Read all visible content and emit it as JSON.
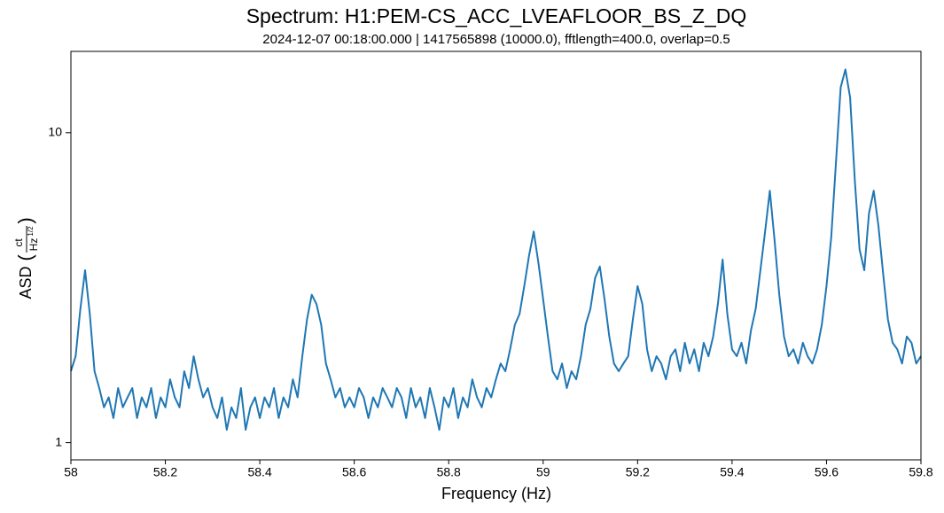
{
  "chart_data": {
    "type": "line",
    "title": "Spectrum: H1:PEM-CS_ACC_LVEAFLOOR_BS_Z_DQ",
    "subtitle": "2024-12-07 00:18:00.000 | 1417565898 (10000.0), fftlength=400.0, overlap=0.5",
    "xlabel": "Frequency (Hz)",
    "ylabel": {
      "text": "ASD",
      "numerator": "ct",
      "denominator": "Hz",
      "exponent": "1/2"
    },
    "log_y": true,
    "grid": false,
    "xlim": [
      58,
      59.8
    ],
    "xticks": [
      58,
      58.2,
      58.4,
      58.6,
      58.8,
      59,
      59.2,
      59.4,
      59.6,
      59.8
    ],
    "ylim": [
      0.88,
      18.3
    ],
    "yticks": [
      1,
      10
    ],
    "x": [
      58,
      58.01,
      58.02,
      58.03,
      58.04,
      58.05,
      58.06,
      58.07,
      58.08,
      58.09,
      58.1,
      58.11,
      58.12,
      58.13,
      58.14,
      58.15,
      58.16,
      58.17,
      58.18,
      58.19,
      58.2,
      58.21,
      58.22,
      58.23,
      58.24,
      58.25,
      58.26,
      58.27,
      58.28,
      58.29,
      58.3,
      58.31,
      58.32,
      58.33,
      58.34,
      58.35,
      58.36,
      58.37,
      58.38,
      58.39,
      58.4,
      58.41,
      58.42,
      58.43,
      58.44,
      58.45,
      58.46,
      58.47,
      58.48,
      58.49,
      58.5,
      58.51,
      58.52,
      58.53,
      58.54,
      58.55,
      58.56,
      58.57,
      58.58,
      58.59,
      58.6,
      58.61,
      58.62,
      58.63,
      58.64,
      58.65,
      58.66,
      58.67,
      58.68,
      58.69,
      58.7,
      58.71,
      58.72,
      58.73,
      58.74,
      58.75,
      58.76,
      58.77,
      58.78,
      58.79,
      58.8,
      58.81,
      58.82,
      58.83,
      58.84,
      58.85,
      58.86,
      58.87,
      58.88,
      58.89,
      58.9,
      58.91,
      58.92,
      58.93,
      58.94,
      58.95,
      58.96,
      58.97,
      58.98,
      58.99,
      59,
      59.01,
      59.02,
      59.03,
      59.04,
      59.05,
      59.06,
      59.07,
      59.08,
      59.09,
      59.1,
      59.11,
      59.12,
      59.13,
      59.14,
      59.15,
      59.16,
      59.17,
      59.18,
      59.19,
      59.2,
      59.21,
      59.22,
      59.23,
      59.24,
      59.25,
      59.26,
      59.27,
      59.28,
      59.29,
      59.3,
      59.31,
      59.32,
      59.33,
      59.34,
      59.35,
      59.36,
      59.37,
      59.38,
      59.39,
      59.4,
      59.41,
      59.42,
      59.43,
      59.44,
      59.45,
      59.46,
      59.47,
      59.48,
      59.49,
      59.5,
      59.51,
      59.52,
      59.53,
      59.54,
      59.55,
      59.56,
      59.57,
      59.58,
      59.59,
      59.6,
      59.61,
      59.62,
      59.63,
      59.64,
      59.65,
      59.66,
      59.67,
      59.68,
      59.69,
      59.7,
      59.71,
      59.72,
      59.73,
      59.74,
      59.75,
      59.76,
      59.77,
      59.78,
      59.79,
      59.8
    ],
    "series": [
      {
        "color": "#1f77b4",
        "values": [
          1.7,
          1.9,
          2.7,
          3.6,
          2.6,
          1.7,
          1.5,
          1.3,
          1.4,
          1.2,
          1.5,
          1.3,
          1.4,
          1.5,
          1.2,
          1.4,
          1.3,
          1.5,
          1.2,
          1.4,
          1.3,
          1.6,
          1.4,
          1.3,
          1.7,
          1.5,
          1.9,
          1.6,
          1.4,
          1.5,
          1.3,
          1.2,
          1.4,
          1.1,
          1.3,
          1.2,
          1.5,
          1.1,
          1.3,
          1.4,
          1.2,
          1.4,
          1.3,
          1.5,
          1.2,
          1.4,
          1.3,
          1.6,
          1.4,
          1.9,
          2.5,
          3.0,
          2.8,
          2.4,
          1.8,
          1.6,
          1.4,
          1.5,
          1.3,
          1.4,
          1.3,
          1.5,
          1.4,
          1.2,
          1.4,
          1.3,
          1.5,
          1.4,
          1.3,
          1.5,
          1.4,
          1.2,
          1.5,
          1.3,
          1.4,
          1.2,
          1.5,
          1.3,
          1.1,
          1.4,
          1.3,
          1.5,
          1.2,
          1.4,
          1.3,
          1.6,
          1.4,
          1.3,
          1.5,
          1.4,
          1.6,
          1.8,
          1.7,
          2.0,
          2.4,
          2.6,
          3.2,
          4.0,
          4.8,
          3.8,
          2.9,
          2.2,
          1.7,
          1.6,
          1.8,
          1.5,
          1.7,
          1.6,
          1.9,
          2.4,
          2.7,
          3.4,
          3.7,
          2.9,
          2.2,
          1.8,
          1.7,
          1.8,
          1.9,
          2.5,
          3.2,
          2.8,
          2.0,
          1.7,
          1.9,
          1.8,
          1.6,
          1.9,
          2.0,
          1.7,
          2.1,
          1.8,
          2.0,
          1.7,
          2.1,
          1.9,
          2.2,
          2.8,
          3.9,
          2.6,
          2.0,
          1.9,
          2.1,
          1.8,
          2.3,
          2.7,
          3.6,
          4.8,
          6.5,
          4.5,
          3.0,
          2.2,
          1.9,
          2.0,
          1.8,
          2.1,
          1.9,
          1.8,
          2.0,
          2.4,
          3.2,
          4.6,
          8.0,
          14.0,
          16.0,
          13.0,
          7.0,
          4.2,
          3.6,
          5.5,
          6.5,
          5.0,
          3.5,
          2.5,
          2.1,
          2.0,
          1.8,
          2.2,
          2.1,
          1.8,
          1.9
        ]
      }
    ]
  }
}
